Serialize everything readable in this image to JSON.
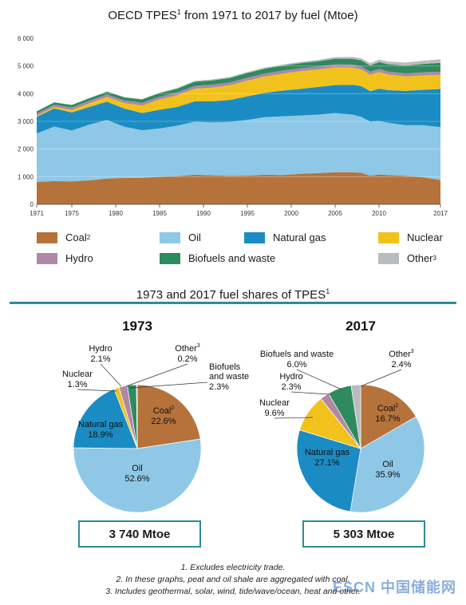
{
  "titles": {
    "line_main": "OECD TPES",
    "line_sup": "1",
    "line_tail": " from 1971 to 2017 by fuel (Mtoe)",
    "shares_main": "1973 and 2017 fuel shares of TPES",
    "shares_sup": "1"
  },
  "colors": {
    "coal": "#b5733b",
    "oil": "#8ec8e6",
    "natural_gas": "#1b8cc3",
    "nuclear": "#f2c21c",
    "hydro": "#b088a6",
    "biofuels": "#2f8a5e",
    "other": "#b9bcbe",
    "accent": "#2e8c96"
  },
  "legend": [
    {
      "key": "coal",
      "label": "Coal",
      "sup": "2"
    },
    {
      "key": "oil",
      "label": "Oil",
      "sup": ""
    },
    {
      "key": "natural_gas",
      "label": "Natural gas",
      "sup": ""
    },
    {
      "key": "nuclear",
      "label": "Nuclear",
      "sup": ""
    },
    {
      "key": "hydro",
      "label": "Hydro",
      "sup": ""
    },
    {
      "key": "biofuels",
      "label": "Biofuels and waste",
      "sup": ""
    },
    {
      "key": "other",
      "label": "Other",
      "sup": "3"
    }
  ],
  "chart_data": [
    {
      "type": "area",
      "title": "OECD TPES1 from 1971 to 2017 by fuel (Mtoe)",
      "stacked": true,
      "x": [
        1971,
        1973,
        1975,
        1977,
        1979,
        1981,
        1983,
        1985,
        1987,
        1989,
        1991,
        1993,
        1995,
        1997,
        1999,
        2001,
        2003,
        2005,
        2007,
        2008,
        2009,
        2010,
        2011,
        2013,
        2015,
        2017
      ],
      "x_tick_labels": [
        "1971",
        "1975",
        "1980",
        "1985",
        "1990",
        "1995",
        "2000",
        "2005",
        "2010",
        "2017"
      ],
      "x_ticks": [
        1971,
        1975,
        1980,
        1985,
        1990,
        1995,
        2000,
        2005,
        2010,
        2017
      ],
      "y_ticks": [
        0,
        1000,
        2000,
        3000,
        4000,
        5000,
        6000
      ],
      "y_tick_labels": [
        "0",
        "1 000",
        "2 000",
        "3 000",
        "4 000",
        "5 000",
        "6 000"
      ],
      "ylim": [
        0,
        6000
      ],
      "grid": "horizontal",
      "series": [
        {
          "name": "Coal",
          "key": "coal",
          "values": [
            810,
            840,
            830,
            870,
            930,
            960,
            960,
            1000,
            1020,
            1070,
            1050,
            1030,
            1040,
            1070,
            1060,
            1100,
            1130,
            1160,
            1160,
            1140,
            1030,
            1080,
            1060,
            1030,
            980,
            880
          ]
        },
        {
          "name": "Oil",
          "key": "oil",
          "values": [
            1750,
            1970,
            1840,
            2010,
            2120,
            1840,
            1720,
            1740,
            1820,
            1920,
            1910,
            1950,
            2010,
            2080,
            2120,
            2110,
            2110,
            2140,
            2080,
            2020,
            1960,
            1930,
            1890,
            1830,
            1880,
            1910
          ]
        },
        {
          "name": "Natural gas",
          "key": "natural_gas",
          "values": [
            600,
            660,
            650,
            640,
            660,
            660,
            620,
            680,
            680,
            730,
            760,
            790,
            850,
            880,
            930,
            960,
            1000,
            1010,
            1080,
            1110,
            1100,
            1170,
            1180,
            1240,
            1280,
            1380
          ]
        },
        {
          "name": "Nuclear",
          "key": "nuclear",
          "values": [
            40,
            50,
            90,
            130,
            170,
            200,
            270,
            370,
            420,
            460,
            500,
            530,
            570,
            590,
            610,
            640,
            630,
            640,
            620,
            600,
            590,
            600,
            560,
            520,
            520,
            510
          ]
        },
        {
          "name": "Hydro",
          "key": "hydro",
          "values": [
            80,
            80,
            90,
            90,
            90,
            95,
            100,
            100,
            100,
            100,
            105,
            105,
            105,
            108,
            110,
            105,
            108,
            110,
            110,
            112,
            112,
            112,
            112,
            112,
            115,
            112
          ]
        },
        {
          "name": "Biofuels and waste",
          "key": "biofuels",
          "values": [
            80,
            85,
            90,
            95,
            100,
            110,
            120,
            130,
            140,
            150,
            155,
            160,
            170,
            175,
            180,
            185,
            190,
            200,
            210,
            220,
            225,
            250,
            260,
            280,
            300,
            320
          ]
        },
        {
          "name": "Other",
          "key": "other",
          "values": [
            5,
            5,
            5,
            7,
            8,
            10,
            15,
            20,
            25,
            30,
            35,
            38,
            40,
            40,
            42,
            45,
            50,
            60,
            70,
            75,
            80,
            90,
            100,
            110,
            115,
            130
          ]
        }
      ]
    },
    {
      "type": "pie",
      "title": "1973",
      "total_label": "3 740 Mtoe",
      "slices": [
        {
          "name": "Coal",
          "key": "coal",
          "value": 22.6,
          "label": "Coal",
          "sup": "2",
          "pct": "22.6%"
        },
        {
          "name": "Oil",
          "key": "oil",
          "value": 52.6,
          "label": "Oil",
          "sup": "",
          "pct": "52.6%"
        },
        {
          "name": "Natural gas",
          "key": "natural_gas",
          "value": 18.9,
          "label": "Natural gas",
          "sup": "",
          "pct": "18.9%"
        },
        {
          "name": "Nuclear",
          "key": "nuclear",
          "value": 1.3,
          "label": "Nuclear",
          "sup": "",
          "pct": "1.3%"
        },
        {
          "name": "Hydro",
          "key": "hydro",
          "value": 2.1,
          "label": "Hydro",
          "sup": "",
          "pct": "2.1%"
        },
        {
          "name": "Biofuels and waste",
          "key": "biofuels",
          "value": 2.3,
          "label": "Biofuels and waste",
          "sup": "",
          "pct": "2.3%"
        },
        {
          "name": "Other",
          "key": "other",
          "value": 0.2,
          "label": "Other",
          "sup": "3",
          "pct": "0.2%"
        }
      ]
    },
    {
      "type": "pie",
      "title": "2017",
      "total_label": "5 303 Mtoe",
      "slices": [
        {
          "name": "Coal",
          "key": "coal",
          "value": 16.7,
          "label": "Coal",
          "sup": "2",
          "pct": "16.7%"
        },
        {
          "name": "Oil",
          "key": "oil",
          "value": 35.9,
          "label": "Oil",
          "sup": "",
          "pct": "35.9%"
        },
        {
          "name": "Natural gas",
          "key": "natural_gas",
          "value": 27.1,
          "label": "Natural gas",
          "sup": "",
          "pct": "27.1%"
        },
        {
          "name": "Nuclear",
          "key": "nuclear",
          "value": 9.6,
          "label": "Nuclear",
          "sup": "",
          "pct": "9.6%"
        },
        {
          "name": "Hydro",
          "key": "hydro",
          "value": 2.3,
          "label": "Hydro",
          "sup": "",
          "pct": "2.3%"
        },
        {
          "name": "Biofuels and waste",
          "key": "biofuels",
          "value": 6.0,
          "label": "Biofuels and waste",
          "sup": "",
          "pct": "6.0%"
        },
        {
          "name": "Other",
          "key": "other",
          "value": 2.4,
          "label": "Other",
          "sup": "3",
          "pct": "2.4%"
        }
      ]
    }
  ],
  "notes": [
    "1. Excludes electricity trade.",
    "2. In these graphs, peat and oil shale are aggregated with coal.",
    "3. Includes geothermal, solar, wind, tide/wave/ocean, heat and other."
  ],
  "watermark": "ESCN 中国储能网"
}
